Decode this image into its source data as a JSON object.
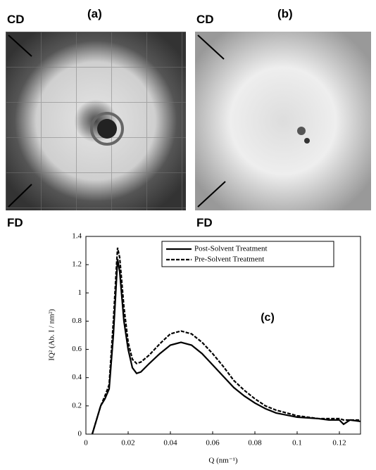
{
  "panels": [
    {
      "label": "(a)",
      "top_label": "CD",
      "bottom_label": "FD"
    },
    {
      "label": "(b)",
      "top_label": "CD",
      "bottom_label": "FD"
    }
  ],
  "chart_data": {
    "type": "line",
    "annotation": "(c)",
    "x_label": "Q (nm⁻¹)",
    "y_label": "IQ² (Ab. I / nm²)",
    "x": [
      0.003,
      0.005,
      0.007,
      0.009,
      0.011,
      0.013,
      0.0145,
      0.015,
      0.016,
      0.018,
      0.02,
      0.022,
      0.024,
      0.026,
      0.03,
      0.035,
      0.04,
      0.045,
      0.05,
      0.055,
      0.06,
      0.065,
      0.07,
      0.075,
      0.08,
      0.085,
      0.09,
      0.1,
      0.11,
      0.115,
      0.12,
      0.122,
      0.125,
      0.13
    ],
    "series": [
      {
        "name": "Post-Solvent Treatment",
        "color": "#000000",
        "style": "solid",
        "values": [
          0,
          0.1,
          0.2,
          0.25,
          0.32,
          0.7,
          1.1,
          1.24,
          1.15,
          0.8,
          0.6,
          0.47,
          0.43,
          0.44,
          0.5,
          0.57,
          0.63,
          0.65,
          0.63,
          0.57,
          0.49,
          0.41,
          0.33,
          0.27,
          0.22,
          0.18,
          0.15,
          0.12,
          0.11,
          0.1,
          0.1,
          0.07,
          0.1,
          0.09
        ]
      },
      {
        "name": "Pre-Solvent Treatment",
        "color": "#000000",
        "style": "dashed",
        "values": [
          0,
          0.1,
          0.2,
          0.27,
          0.35,
          0.8,
          1.2,
          1.32,
          1.25,
          0.9,
          0.65,
          0.53,
          0.5,
          0.51,
          0.56,
          0.64,
          0.71,
          0.73,
          0.71,
          0.65,
          0.57,
          0.48,
          0.38,
          0.31,
          0.25,
          0.2,
          0.17,
          0.13,
          0.11,
          0.11,
          0.11,
          0.1,
          0.1,
          0.1
        ]
      }
    ],
    "xlim": [
      0,
      0.13
    ],
    "xticks": [
      0,
      0.02,
      0.04,
      0.06,
      0.08,
      0.1,
      0.12
    ],
    "ylim": [
      0,
      1.4
    ],
    "yticks": [
      0,
      0.2,
      0.4,
      0.6,
      0.8,
      1,
      1.2,
      1.4
    ]
  }
}
